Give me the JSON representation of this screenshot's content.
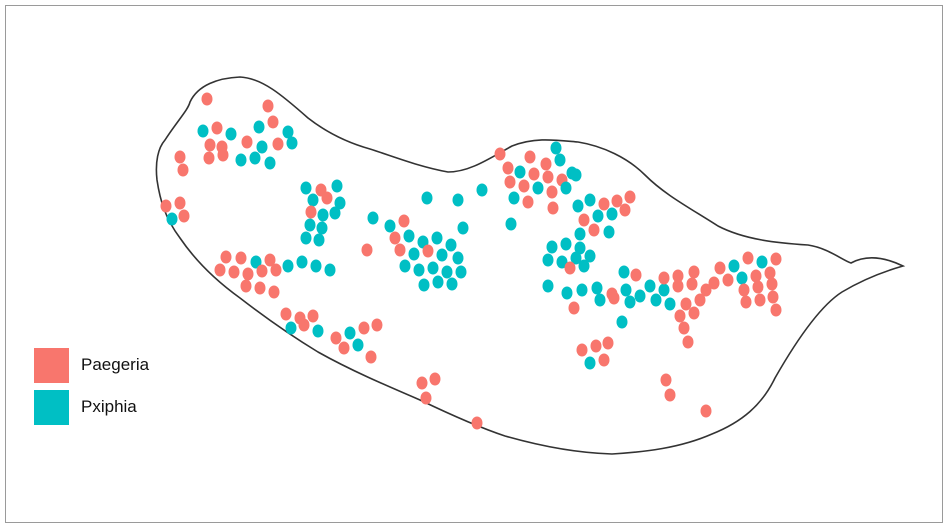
{
  "legend": {
    "items": [
      {
        "label": "Paegeria",
        "color": "#F8766D"
      },
      {
        "label": "Pxiphia",
        "color": "#00BFC4"
      }
    ]
  },
  "map": {
    "outline_color": "#333333",
    "background_color": "#ffffff"
  }
}
